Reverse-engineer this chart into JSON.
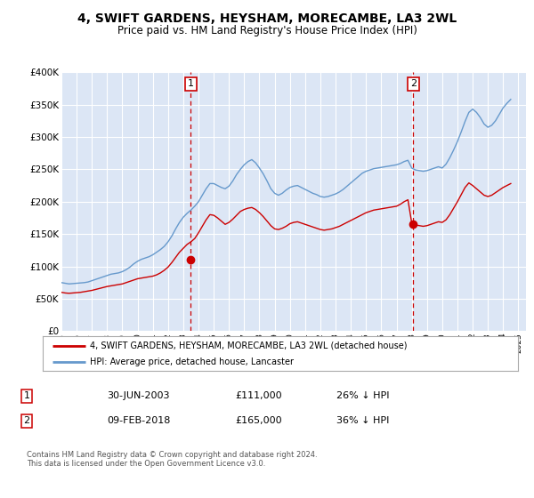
{
  "title": "4, SWIFT GARDENS, HEYSHAM, MORECAMBE, LA3 2WL",
  "subtitle": "Price paid vs. HM Land Registry's House Price Index (HPI)",
  "ylim": [
    0,
    400000
  ],
  "yticks": [
    0,
    50000,
    100000,
    150000,
    200000,
    250000,
    300000,
    350000,
    400000
  ],
  "xlim_start": 1995.0,
  "xlim_end": 2025.5,
  "plot_bg_color": "#dce6f5",
  "grid_color": "#ffffff",
  "hpi_color": "#6699cc",
  "price_color": "#cc0000",
  "sale1_date": 2003.5,
  "sale1_price": 111000,
  "sale1_label": "1",
  "sale2_date": 2018.1,
  "sale2_price": 165000,
  "sale2_label": "2",
  "legend_entry1": "4, SWIFT GARDENS, HEYSHAM, MORECAMBE, LA3 2WL (detached house)",
  "legend_entry2": "HPI: Average price, detached house, Lancaster",
  "table_entry1": [
    "1",
    "30-JUN-2003",
    "£111,000",
    "26% ↓ HPI"
  ],
  "table_entry2": [
    "2",
    "09-FEB-2018",
    "£165,000",
    "36% ↓ HPI"
  ],
  "footnote": "Contains HM Land Registry data © Crown copyright and database right 2024.\nThis data is licensed under the Open Government Licence v3.0.",
  "hpi_data_x": [
    1995.0,
    1995.25,
    1995.5,
    1995.75,
    1996.0,
    1996.25,
    1996.5,
    1996.75,
    1997.0,
    1997.25,
    1997.5,
    1997.75,
    1998.0,
    1998.25,
    1998.5,
    1998.75,
    1999.0,
    1999.25,
    1999.5,
    1999.75,
    2000.0,
    2000.25,
    2000.5,
    2000.75,
    2001.0,
    2001.25,
    2001.5,
    2001.75,
    2002.0,
    2002.25,
    2002.5,
    2002.75,
    2003.0,
    2003.25,
    2003.5,
    2003.75,
    2004.0,
    2004.25,
    2004.5,
    2004.75,
    2005.0,
    2005.25,
    2005.5,
    2005.75,
    2006.0,
    2006.25,
    2006.5,
    2006.75,
    2007.0,
    2007.25,
    2007.5,
    2007.75,
    2008.0,
    2008.25,
    2008.5,
    2008.75,
    2009.0,
    2009.25,
    2009.5,
    2009.75,
    2010.0,
    2010.25,
    2010.5,
    2010.75,
    2011.0,
    2011.25,
    2011.5,
    2011.75,
    2012.0,
    2012.25,
    2012.5,
    2012.75,
    2013.0,
    2013.25,
    2013.5,
    2013.75,
    2014.0,
    2014.25,
    2014.5,
    2014.75,
    2015.0,
    2015.25,
    2015.5,
    2015.75,
    2016.0,
    2016.25,
    2016.5,
    2016.75,
    2017.0,
    2017.25,
    2017.5,
    2017.75,
    2018.0,
    2018.25,
    2018.5,
    2018.75,
    2019.0,
    2019.25,
    2019.5,
    2019.75,
    2020.0,
    2020.25,
    2020.5,
    2020.75,
    2021.0,
    2021.25,
    2021.5,
    2021.75,
    2022.0,
    2022.25,
    2022.5,
    2022.75,
    2023.0,
    2023.25,
    2023.5,
    2023.75,
    2024.0,
    2024.25,
    2024.5
  ],
  "hpi_data_y": [
    75000,
    74000,
    73000,
    73500,
    74000,
    74500,
    75000,
    76000,
    78000,
    80000,
    82000,
    84000,
    86000,
    88000,
    89000,
    90000,
    92000,
    95000,
    99000,
    104000,
    108000,
    111000,
    113000,
    115000,
    118000,
    122000,
    126000,
    131000,
    138000,
    147000,
    158000,
    168000,
    176000,
    182000,
    187000,
    193000,
    200000,
    210000,
    220000,
    228000,
    228000,
    225000,
    222000,
    220000,
    224000,
    232000,
    242000,
    250000,
    257000,
    262000,
    265000,
    260000,
    252000,
    243000,
    232000,
    220000,
    213000,
    210000,
    213000,
    218000,
    222000,
    224000,
    225000,
    222000,
    219000,
    216000,
    213000,
    211000,
    208000,
    207000,
    208000,
    210000,
    212000,
    215000,
    219000,
    224000,
    229000,
    234000,
    239000,
    244000,
    247000,
    249000,
    251000,
    252000,
    253000,
    254000,
    255000,
    256000,
    257000,
    259000,
    262000,
    264000,
    252000,
    249000,
    248000,
    247000,
    248000,
    250000,
    252000,
    254000,
    252000,
    258000,
    268000,
    280000,
    293000,
    308000,
    324000,
    338000,
    343000,
    338000,
    330000,
    320000,
    315000,
    318000,
    325000,
    335000,
    345000,
    352000,
    358000
  ],
  "price_data_x": [
    1995.0,
    1995.25,
    1995.5,
    1995.75,
    1996.0,
    1996.25,
    1996.5,
    1996.75,
    1997.0,
    1997.25,
    1997.5,
    1997.75,
    1998.0,
    1998.25,
    1998.5,
    1998.75,
    1999.0,
    1999.25,
    1999.5,
    1999.75,
    2000.0,
    2000.25,
    2000.5,
    2000.75,
    2001.0,
    2001.25,
    2001.5,
    2001.75,
    2002.0,
    2002.25,
    2002.5,
    2002.75,
    2003.0,
    2003.25,
    2003.5,
    2003.75,
    2004.0,
    2004.25,
    2004.5,
    2004.75,
    2005.0,
    2005.25,
    2005.5,
    2005.75,
    2006.0,
    2006.25,
    2006.5,
    2006.75,
    2007.0,
    2007.25,
    2007.5,
    2007.75,
    2008.0,
    2008.25,
    2008.5,
    2008.75,
    2009.0,
    2009.25,
    2009.5,
    2009.75,
    2010.0,
    2010.25,
    2010.5,
    2010.75,
    2011.0,
    2011.25,
    2011.5,
    2011.75,
    2012.0,
    2012.25,
    2012.5,
    2012.75,
    2013.0,
    2013.25,
    2013.5,
    2013.75,
    2014.0,
    2014.25,
    2014.5,
    2014.75,
    2015.0,
    2015.25,
    2015.5,
    2015.75,
    2016.0,
    2016.25,
    2016.5,
    2016.75,
    2017.0,
    2017.25,
    2017.5,
    2017.75,
    2018.0,
    2018.25,
    2018.5,
    2018.75,
    2019.0,
    2019.25,
    2019.5,
    2019.75,
    2020.0,
    2020.25,
    2020.5,
    2020.75,
    2021.0,
    2021.25,
    2021.5,
    2021.75,
    2022.0,
    2022.25,
    2022.5,
    2022.75,
    2023.0,
    2023.25,
    2023.5,
    2023.75,
    2024.0,
    2024.25,
    2024.5
  ],
  "price_data_y": [
    60000,
    59000,
    58500,
    59000,
    59500,
    60000,
    61000,
    62000,
    63000,
    64500,
    66000,
    67500,
    69000,
    70000,
    71000,
    72000,
    73000,
    75000,
    77000,
    79000,
    81000,
    82000,
    83000,
    84000,
    85000,
    87000,
    90000,
    94000,
    99000,
    106000,
    114000,
    122000,
    128000,
    134000,
    138000,
    143000,
    152000,
    162000,
    172000,
    180000,
    179000,
    175000,
    170000,
    165000,
    168000,
    173000,
    179000,
    185000,
    188000,
    190000,
    191000,
    188000,
    183000,
    177000,
    170000,
    163000,
    158000,
    157000,
    159000,
    162000,
    166000,
    168000,
    169000,
    167000,
    165000,
    163000,
    161000,
    159000,
    157000,
    156000,
    157000,
    158000,
    160000,
    162000,
    165000,
    168000,
    171000,
    174000,
    177000,
    180000,
    183000,
    185000,
    187000,
    188000,
    189000,
    190000,
    191000,
    192000,
    193000,
    196000,
    200000,
    203000,
    167000,
    164000,
    163000,
    162000,
    163000,
    165000,
    167000,
    169000,
    168000,
    172000,
    180000,
    190000,
    200000,
    211000,
    222000,
    229000,
    225000,
    220000,
    215000,
    210000,
    208000,
    210000,
    214000,
    218000,
    222000,
    225000,
    228000
  ]
}
